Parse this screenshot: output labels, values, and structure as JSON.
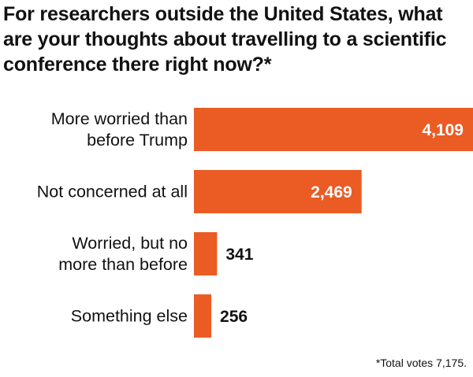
{
  "chart_data": {
    "type": "bar",
    "orientation": "horizontal",
    "title": "For researchers outside the United States, what are your thoughts about travelling to a scientific conference there right now?*",
    "categories": [
      [
        "More worried than",
        "before Trump"
      ],
      [
        "Not concerned at all"
      ],
      [
        "Worried, but no",
        "more than before"
      ],
      [
        "Something else"
      ]
    ],
    "values": [
      4109,
      2469,
      341,
      256
    ],
    "value_labels": [
      "4,109",
      "2,469",
      "341",
      "256"
    ],
    "xlim": [
      0,
      4109
    ],
    "bar_color": "#eb5c24",
    "label_inside_color": "#ffffff",
    "label_outside_color": "#111111",
    "footnote": "*Total votes 7,175."
  }
}
